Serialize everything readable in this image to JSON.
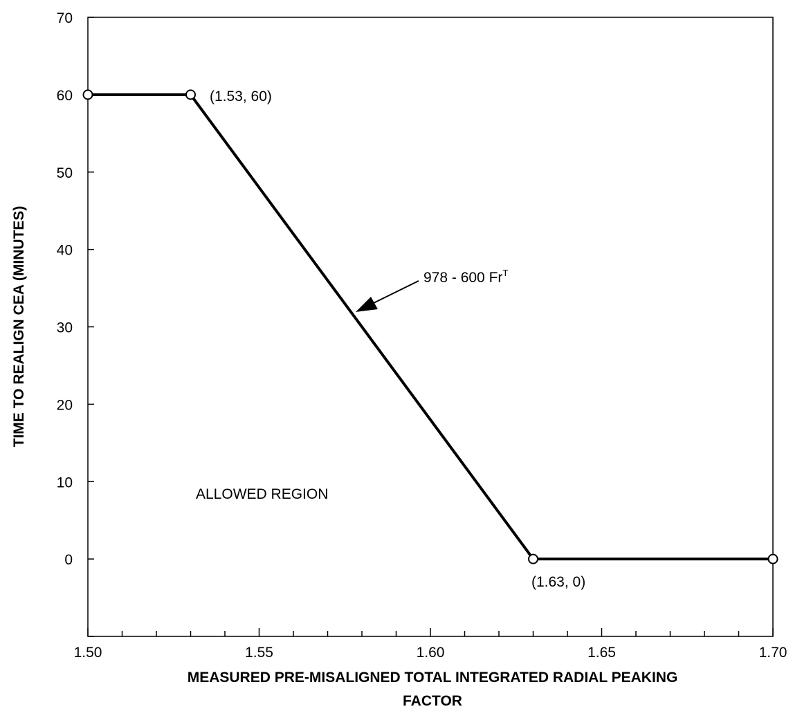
{
  "chart_data": {
    "type": "line",
    "title": "",
    "xlabel_line1": "MEASURED PRE-MISALIGNED TOTAL INTEGRATED RADIAL PEAKING",
    "xlabel_line2": "FACTOR",
    "ylabel": "TIME TO REALIGN CEA (MINUTES)",
    "xlim": [
      1.5,
      1.7
    ],
    "ylim": [
      -10,
      70
    ],
    "x_ticks": [
      "1.50",
      "1.55",
      "1.60",
      "1.65",
      "1.70"
    ],
    "y_ticks": [
      "0",
      "10",
      "20",
      "30",
      "40",
      "50",
      "60",
      "70"
    ],
    "grid": false,
    "series": [
      {
        "points": [
          {
            "x": 1.5,
            "y": 60
          },
          {
            "x": 1.53,
            "y": 60
          },
          {
            "x": 1.63,
            "y": 0
          },
          {
            "x": 1.7,
            "y": 0
          }
        ],
        "color": "#000000"
      }
    ],
    "annotations": {
      "point_a": "(1.53, 60)",
      "point_b": "(1.63, 0)",
      "equation_text": "978 - 600 Fr",
      "equation_sup": "T",
      "region_label": "ALLOWED REGION"
    }
  }
}
